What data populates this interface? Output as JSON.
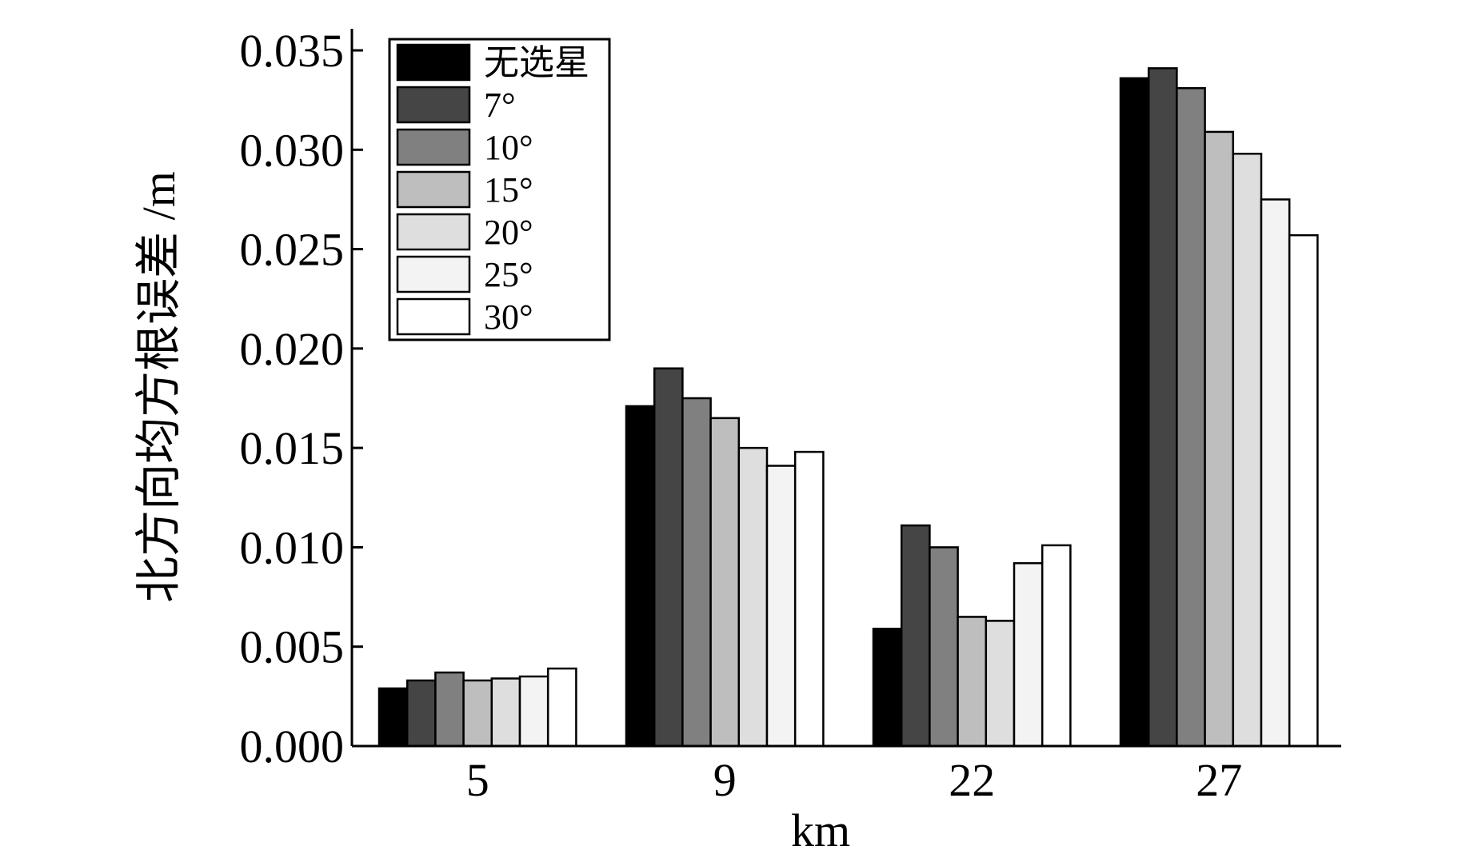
{
  "chart_data": {
    "type": "bar",
    "xlabel": "km",
    "ylabel": "北方向均方根误差 /m",
    "ylim": [
      0,
      0.036
    ],
    "yticks": [
      "0.000",
      "0.005",
      "0.010",
      "0.015",
      "0.020",
      "0.025",
      "0.030",
      "0.035"
    ],
    "categories": [
      "5",
      "9",
      "22",
      "27"
    ],
    "legend_position": "top-left",
    "grid": false,
    "series": [
      {
        "name": "无选星",
        "color": "#000000",
        "values": [
          0.0029,
          0.0171,
          0.0059,
          0.0336
        ]
      },
      {
        "name": "7°",
        "color": "#454545",
        "values": [
          0.0033,
          0.019,
          0.0111,
          0.0341
        ]
      },
      {
        "name": "10°",
        "color": "#808080",
        "values": [
          0.0037,
          0.0175,
          0.01,
          0.0331
        ]
      },
      {
        "name": "15°",
        "color": "#bebebe",
        "values": [
          0.0033,
          0.0165,
          0.0065,
          0.0309
        ]
      },
      {
        "name": "20°",
        "color": "#dedede",
        "values": [
          0.0034,
          0.015,
          0.0063,
          0.0298
        ]
      },
      {
        "name": "25°",
        "color": "#f3f3f3",
        "values": [
          0.0035,
          0.0141,
          0.0092,
          0.0275
        ]
      },
      {
        "name": "30°",
        "color": "#ffffff",
        "values": [
          0.0039,
          0.0148,
          0.0101,
          0.0257
        ]
      }
    ]
  }
}
